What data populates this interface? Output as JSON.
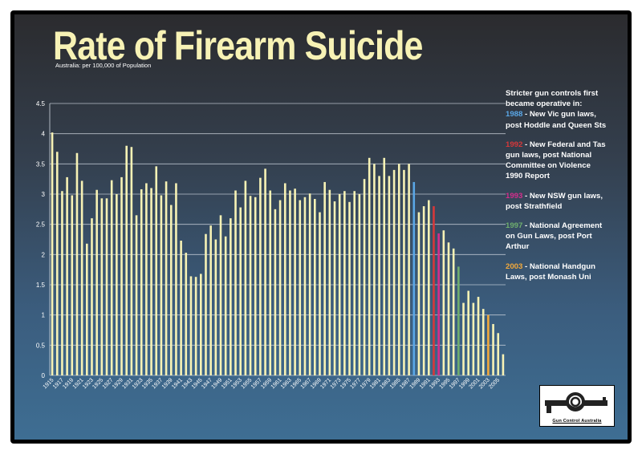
{
  "colors": {
    "bar_default": "#f7f2b5",
    "title": "#f7f2b5",
    "blue": "#5aa7e6",
    "red": "#d6383a",
    "magenta": "#d42e8c",
    "green": "#6fae6e",
    "orange": "#f2a93b"
  },
  "header": {
    "title": "Rate of Firearm Suicide",
    "subtitle": "Australia: per 100,000 of Population"
  },
  "annotations": {
    "intro": "Stricter gun controls first became operative in:",
    "items": [
      {
        "year": "1988",
        "text": " - New Vic gun laws, post Hoddle and Queen Sts",
        "color": "#5aa7e6"
      },
      {
        "year": "1992",
        "text": " - New Federal and Tas gun laws, post National Committee on Violence 1990 Report",
        "color": "#d6383a"
      },
      {
        "year": "1993",
        "text": " - New NSW gun laws, post Strathfield",
        "color": "#d42e8c"
      },
      {
        "year": "1997",
        "text": " - National Agreement on Gun Laws, post Port Arthur",
        "color": "#6fae6e"
      },
      {
        "year": "2003",
        "text": " - National Handgun Laws, post Monash Uni",
        "color": "#f2a93b"
      }
    ]
  },
  "logo": {
    "text": "Gun Control Australia",
    "icon": "knotted-gun-icon"
  },
  "chart_data": {
    "type": "bar",
    "title": "Rate of Firearm Suicide",
    "subtitle": "Australia: per 100,000 of Population",
    "xlabel": "",
    "ylabel": "",
    "ylim": [
      0,
      4.5
    ],
    "yticks": [
      "0",
      "0.5",
      "1",
      "1.5",
      "2",
      "2.5",
      "3",
      "3.5",
      "4",
      "4.5"
    ],
    "grid": true,
    "x_start": 1915,
    "x_end": 2006,
    "xtick_labels": [
      "1915",
      "1917",
      "1919",
      "1921",
      "1923",
      "1925",
      "1927",
      "1929",
      "1931",
      "1933",
      "1935",
      "1937",
      "1939",
      "1941",
      "1943",
      "1945",
      "1947",
      "1949",
      "1951",
      "1953",
      "1955",
      "1957",
      "1959",
      "1961",
      "1963",
      "1965",
      "1967",
      "1969",
      "1971",
      "1973",
      "1975",
      "1977",
      "1979",
      "1981",
      "1983",
      "1985",
      "1987",
      "1989",
      "1991",
      "1993",
      "1995",
      "1997",
      "1999",
      "2001",
      "2003",
      "2005"
    ],
    "values": [
      4.02,
      3.7,
      3.05,
      3.28,
      2.98,
      3.68,
      3.22,
      2.18,
      2.6,
      3.07,
      2.93,
      2.93,
      3.23,
      3.0,
      3.28,
      3.8,
      3.78,
      2.65,
      3.08,
      3.18,
      3.1,
      3.46,
      2.98,
      3.21,
      2.82,
      3.18,
      2.23,
      2.03,
      1.64,
      1.63,
      1.68,
      2.34,
      2.48,
      2.25,
      2.65,
      2.3,
      2.6,
      3.06,
      2.78,
      3.22,
      2.97,
      2.95,
      3.27,
      3.42,
      3.06,
      2.75,
      2.9,
      3.18,
      3.06,
      3.09,
      2.9,
      2.95,
      3.01,
      2.92,
      2.7,
      3.2,
      3.07,
      2.88,
      3.0,
      3.05,
      2.87,
      3.05,
      3.0,
      3.25,
      3.6,
      3.5,
      3.3,
      3.6,
      3.3,
      3.4,
      3.5,
      3.4,
      3.5,
      3.2,
      2.7,
      2.8,
      2.9,
      2.8,
      2.35,
      2.4,
      2.2,
      2.1,
      1.8,
      1.2,
      1.4,
      1.2,
      1.3,
      1.1,
      1.0,
      0.85,
      0.7,
      0.35
    ],
    "highlights": {
      "1988": "#5aa7e6",
      "1992": "#d6383a",
      "1993": "#d42e8c",
      "1997": "#6fae6e",
      "2003": "#f2a93b"
    }
  }
}
